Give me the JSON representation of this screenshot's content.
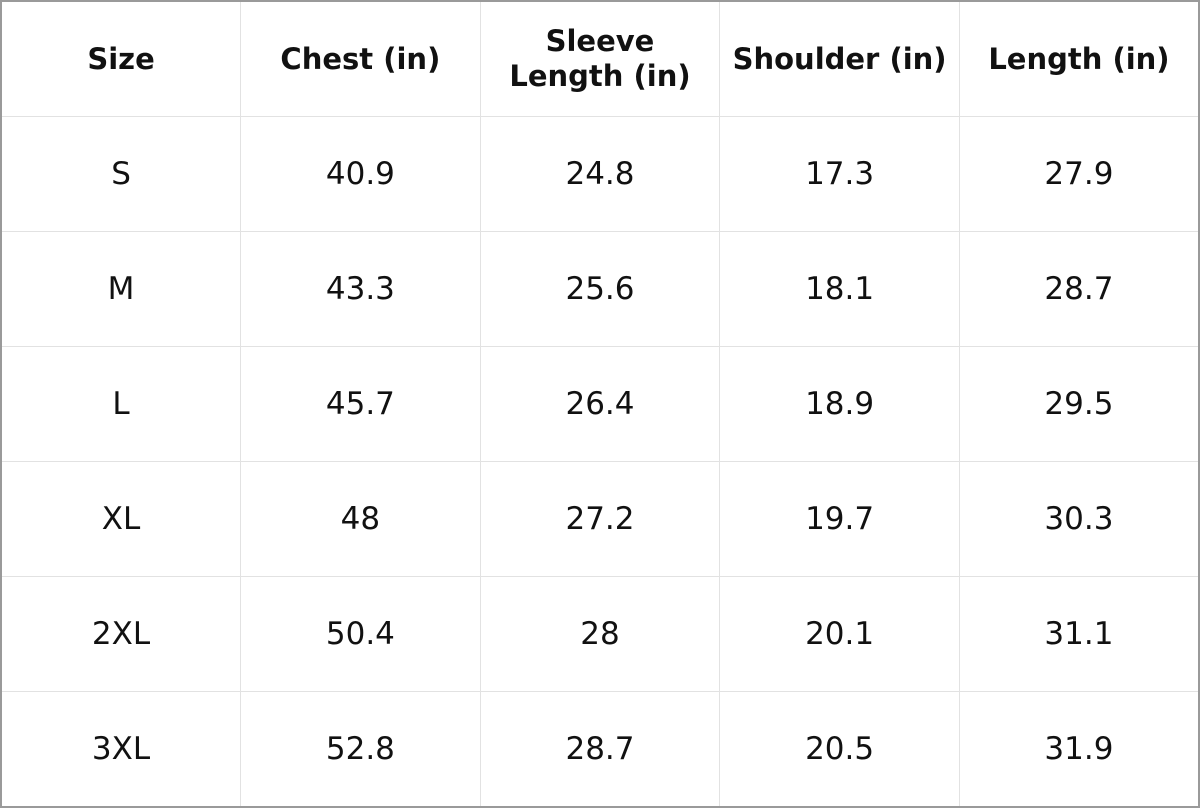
{
  "table": {
    "headers": [
      "Size",
      "Chest (in)",
      "Sleeve Length (in)",
      "Shoulder (in)",
      "Length (in)"
    ],
    "rows": [
      [
        "S",
        40.9,
        24.8,
        17.3,
        27.9
      ],
      [
        "M",
        43.3,
        25.6,
        18.1,
        28.7
      ],
      [
        "L",
        45.7,
        26.4,
        18.9,
        29.5
      ],
      [
        "XL",
        48,
        27.2,
        19.7,
        30.3
      ],
      [
        "2XL",
        50.4,
        28,
        20.1,
        31.1
      ],
      [
        "3XL",
        52.8,
        28.7,
        20.5,
        31.9
      ]
    ]
  }
}
